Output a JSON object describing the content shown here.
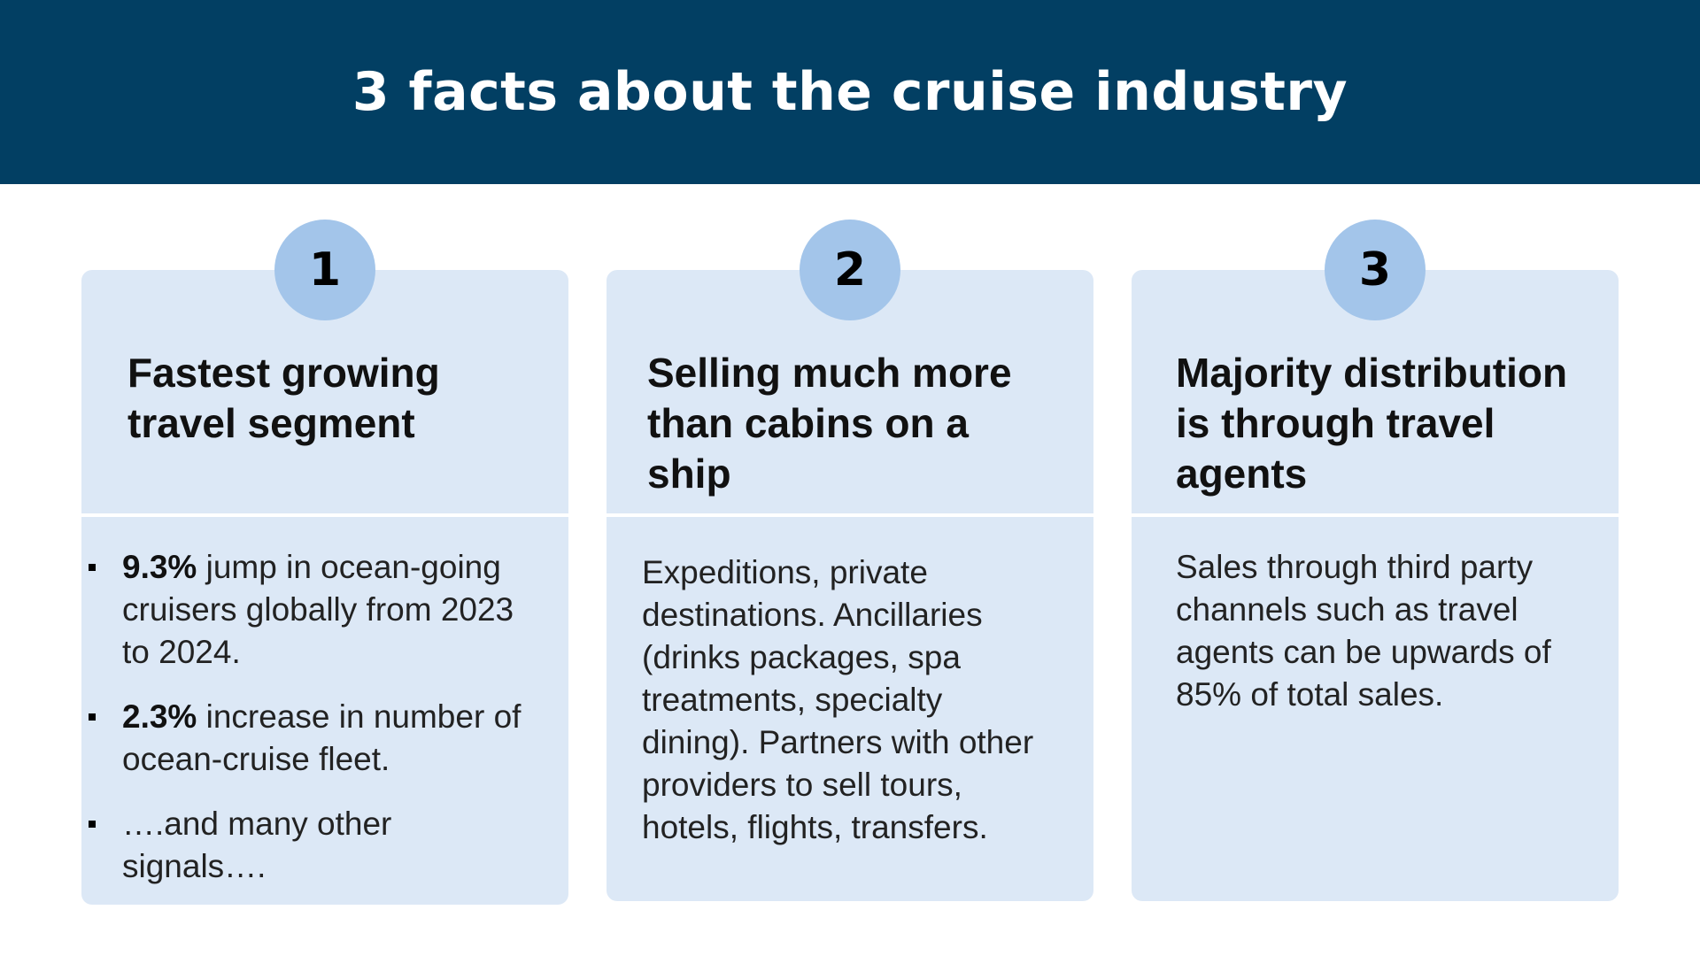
{
  "title": "3 facts about the cruise industry",
  "cards": [
    {
      "number": "1",
      "title_lines": [
        "Fastest growing",
        "travel segment"
      ],
      "facts": [
        {
          "bold": "9.3%",
          "text": " jump in ocean-going cruisers globally from 2023 to 2024."
        },
        {
          "bold": "2.3%",
          "text": " increase in number of ocean-cruise fleet."
        },
        {
          "bold": "",
          "text": "….and many other signals…."
        }
      ]
    },
    {
      "number": "2",
      "title_lines": [
        "Selling much more",
        "than cabins on a",
        "ship"
      ],
      "body": "Expeditions, private destinations. Ancillaries (drinks packages, spa treatments, specialty dining). Partners with other providers to sell tours, hotels, flights, transfers."
    },
    {
      "number": "3",
      "title_lines": [
        "Majority distribution",
        "is through travel",
        "agents"
      ],
      "body": "Sales through third party channels such as travel agents can be upwards of 85% of total sales."
    }
  ],
  "colors": {
    "header": "#023f63",
    "card": "#dce8f6",
    "badge": "#a3c5ea"
  }
}
